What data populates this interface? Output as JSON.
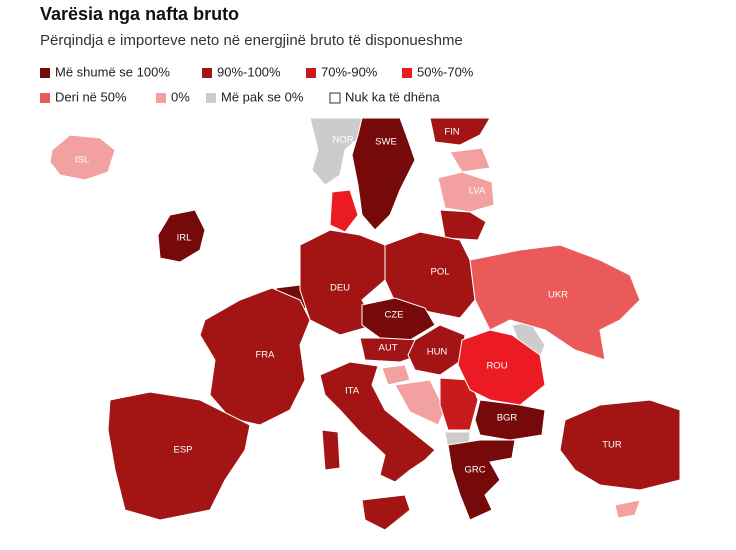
{
  "title": "Varësia nga nafta bruto",
  "subtitle": "Përqindja e importeve neto në energjinë bruto të disponueshme",
  "legend": [
    {
      "label": "Më shumë se 100%",
      "color": "#760909"
    },
    {
      "label": "90%-100%",
      "color": "#a31414"
    },
    {
      "label": "70%-90%",
      "color": "#c81c1c"
    },
    {
      "label": "50%-70%",
      "color": "#ec1a22"
    },
    {
      "label": "Deri në 50%",
      "color": "#ea5a5a"
    },
    {
      "label": "0%",
      "color": "#f3a0a0"
    },
    {
      "label": "Më pak se 0%",
      "color": "#cccccc"
    },
    {
      "label": "Nuk ka të dhëna",
      "color": "#ffffff"
    }
  ],
  "countries": [
    {
      "label": "ISL",
      "category": "0%"
    },
    {
      "label": "NOR",
      "category": "Më pak se 0%"
    },
    {
      "label": "SWE",
      "category": "Më shumë se 100%"
    },
    {
      "label": "FIN",
      "category": "90%-100%"
    },
    {
      "label": "LVA",
      "category": "0%"
    },
    {
      "label": "IRL",
      "category": "Më shumë se 100%"
    },
    {
      "label": "DEU",
      "category": "90%-100%"
    },
    {
      "label": "POL",
      "category": "90%-100%"
    },
    {
      "label": "UKR",
      "category": "Deri në 50%"
    },
    {
      "label": "CZE",
      "category": "Më shumë se 100%"
    },
    {
      "label": "FRA",
      "category": "90%-100%"
    },
    {
      "label": "AUT",
      "category": "90%-100%"
    },
    {
      "label": "HUN",
      "category": "90%-100%"
    },
    {
      "label": "ROU",
      "category": "50%-70%"
    },
    {
      "label": "ITA",
      "category": "90%-100%"
    },
    {
      "label": "BGR",
      "category": "Më shumë se 100%"
    },
    {
      "label": "ESP",
      "category": "90%-100%"
    },
    {
      "label": "TUR",
      "category": "90%-100%"
    },
    {
      "label": "GRC",
      "category": "Më shumë se 100%"
    }
  ]
}
